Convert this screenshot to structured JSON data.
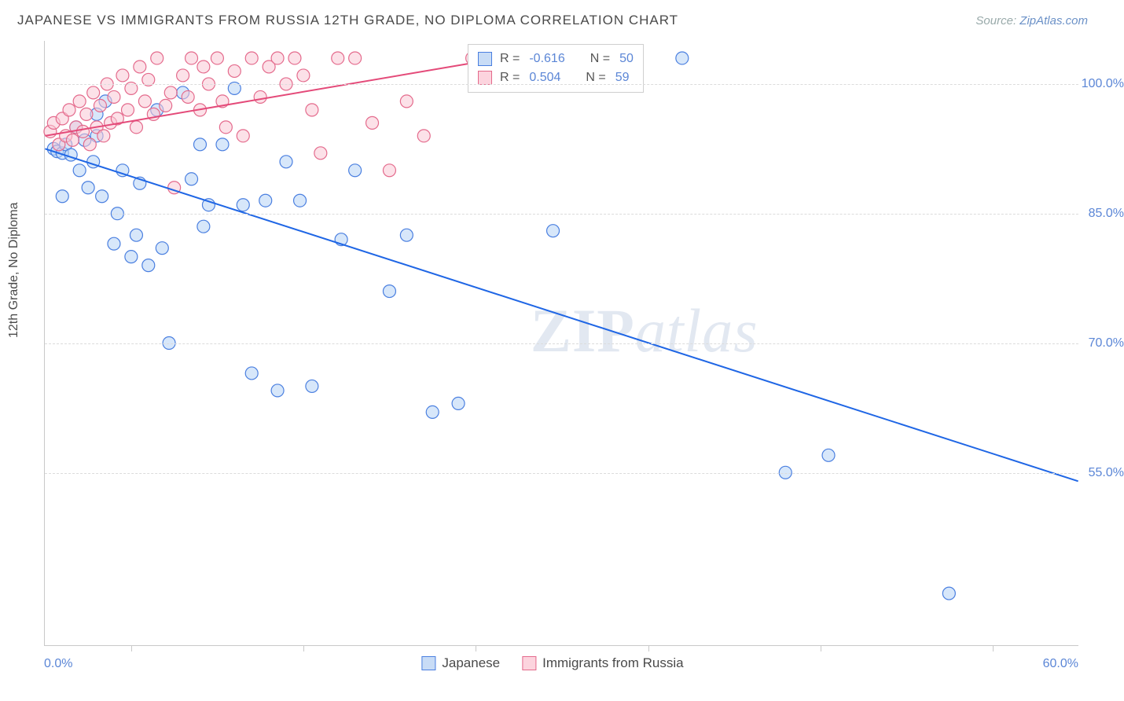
{
  "header": {
    "title": "JAPANESE VS IMMIGRANTS FROM RUSSIA 12TH GRADE, NO DIPLOMA CORRELATION CHART",
    "source_prefix": "Source: ",
    "source_link": "ZipAtlas.com"
  },
  "watermark": {
    "part1": "ZIP",
    "part2": "atlas"
  },
  "chart": {
    "type": "scatter",
    "xlim": [
      0,
      60
    ],
    "ylim": [
      35,
      105
    ],
    "x_axis_min_label": "0.0%",
    "x_axis_max_label": "60.0%",
    "x_tick_positions": [
      5,
      15,
      25,
      35,
      45,
      55
    ],
    "y_gridlines": [
      55,
      70,
      85,
      100
    ],
    "y_grid_labels": [
      "55.0%",
      "70.0%",
      "85.0%",
      "100.0%"
    ],
    "y_axis_title": "12th Grade, No Diploma",
    "background_color": "#ffffff",
    "grid_color": "#dcdcdc",
    "axis_color": "#c9c9c9",
    "tick_label_color": "#5b86d6",
    "marker_radius": 8,
    "marker_stroke_width": 1.2,
    "trend_line_width": 2
  },
  "series": [
    {
      "id": "japanese",
      "label": "Japanese",
      "color_fill": "#b7d3f5",
      "color_stroke": "#4a7fe0",
      "fill_opacity": 0.55,
      "R": "-0.616",
      "N": "50",
      "trend": {
        "x1": 0,
        "y1": 92.5,
        "x2": 60,
        "y2": 54.0,
        "color": "#1f66e5"
      },
      "points": [
        [
          0.5,
          92.5
        ],
        [
          0.7,
          92.2
        ],
        [
          1.0,
          92.0
        ],
        [
          1.2,
          93.0
        ],
        [
          1.5,
          91.8
        ],
        [
          1.8,
          95.0
        ],
        [
          2.0,
          90.0
        ],
        [
          2.3,
          93.5
        ],
        [
          2.5,
          88.0
        ],
        [
          2.8,
          91.0
        ],
        [
          3.0,
          94.0
        ],
        [
          3.3,
          87.0
        ],
        [
          3.5,
          98.0
        ],
        [
          4.0,
          81.5
        ],
        [
          4.2,
          85.0
        ],
        [
          4.5,
          90.0
        ],
        [
          5.0,
          80.0
        ],
        [
          5.3,
          82.5
        ],
        [
          5.5,
          88.5
        ],
        [
          6.0,
          79.0
        ],
        [
          6.5,
          97.0
        ],
        [
          6.8,
          81.0
        ],
        [
          7.2,
          70.0
        ],
        [
          8.0,
          99.0
        ],
        [
          8.5,
          89.0
        ],
        [
          9.0,
          93.0
        ],
        [
          9.2,
          83.5
        ],
        [
          9.5,
          86.0
        ],
        [
          10.3,
          93.0
        ],
        [
          11.0,
          99.5
        ],
        [
          11.5,
          86.0
        ],
        [
          12.0,
          66.5
        ],
        [
          12.8,
          86.5
        ],
        [
          13.5,
          64.5
        ],
        [
          14.0,
          91.0
        ],
        [
          14.8,
          86.5
        ],
        [
          15.5,
          65.0
        ],
        [
          17.2,
          82.0
        ],
        [
          18.0,
          90.0
        ],
        [
          20.0,
          76.0
        ],
        [
          21.0,
          82.5
        ],
        [
          22.5,
          62.0
        ],
        [
          24.0,
          63.0
        ],
        [
          29.5,
          83.0
        ],
        [
          37.0,
          103.0
        ],
        [
          43.0,
          55.0
        ],
        [
          45.5,
          57.0
        ],
        [
          52.5,
          41.0
        ],
        [
          1.0,
          87.0
        ],
        [
          3.0,
          96.5
        ]
      ]
    },
    {
      "id": "russia",
      "label": "Immigrants from Russia",
      "color_fill": "#f9c9d6",
      "color_stroke": "#e46a8c",
      "fill_opacity": 0.55,
      "R": "0.504",
      "N": "59",
      "trend": {
        "x1": 0,
        "y1": 94.0,
        "x2": 25,
        "y2": 102.5,
        "color": "#e44a79"
      },
      "points": [
        [
          0.3,
          94.5
        ],
        [
          0.5,
          95.5
        ],
        [
          0.8,
          93.0
        ],
        [
          1.0,
          96.0
        ],
        [
          1.2,
          94.0
        ],
        [
          1.4,
          97.0
        ],
        [
          1.6,
          93.5
        ],
        [
          1.8,
          95.0
        ],
        [
          2.0,
          98.0
        ],
        [
          2.2,
          94.5
        ],
        [
          2.4,
          96.5
        ],
        [
          2.6,
          93.0
        ],
        [
          2.8,
          99.0
        ],
        [
          3.0,
          95.0
        ],
        [
          3.2,
          97.5
        ],
        [
          3.4,
          94.0
        ],
        [
          3.6,
          100.0
        ],
        [
          3.8,
          95.5
        ],
        [
          4.0,
          98.5
        ],
        [
          4.2,
          96.0
        ],
        [
          4.5,
          101.0
        ],
        [
          4.8,
          97.0
        ],
        [
          5.0,
          99.5
        ],
        [
          5.3,
          95.0
        ],
        [
          5.5,
          102.0
        ],
        [
          5.8,
          98.0
        ],
        [
          6.0,
          100.5
        ],
        [
          6.3,
          96.5
        ],
        [
          6.5,
          103.0
        ],
        [
          7.0,
          97.5
        ],
        [
          7.3,
          99.0
        ],
        [
          7.5,
          88.0
        ],
        [
          8.0,
          101.0
        ],
        [
          8.3,
          98.5
        ],
        [
          8.5,
          103.0
        ],
        [
          9.0,
          97.0
        ],
        [
          9.2,
          102.0
        ],
        [
          9.5,
          100.0
        ],
        [
          10.0,
          103.0
        ],
        [
          10.3,
          98.0
        ],
        [
          10.5,
          95.0
        ],
        [
          11.0,
          101.5
        ],
        [
          11.5,
          94.0
        ],
        [
          12.0,
          103.0
        ],
        [
          12.5,
          98.5
        ],
        [
          13.0,
          102.0
        ],
        [
          13.5,
          103.0
        ],
        [
          14.0,
          100.0
        ],
        [
          14.5,
          103.0
        ],
        [
          15.0,
          101.0
        ],
        [
          15.5,
          97.0
        ],
        [
          16.0,
          92.0
        ],
        [
          17.0,
          103.0
        ],
        [
          18.0,
          103.0
        ],
        [
          19.0,
          95.5
        ],
        [
          20.0,
          90.0
        ],
        [
          21.0,
          98.0
        ],
        [
          22.0,
          94.0
        ],
        [
          24.8,
          103.0
        ]
      ]
    }
  ],
  "stats_legend": {
    "r_label": "R =",
    "n_label": "N ="
  },
  "bottom_legend": {
    "items": [
      "Japanese",
      "Immigrants from Russia"
    ]
  }
}
